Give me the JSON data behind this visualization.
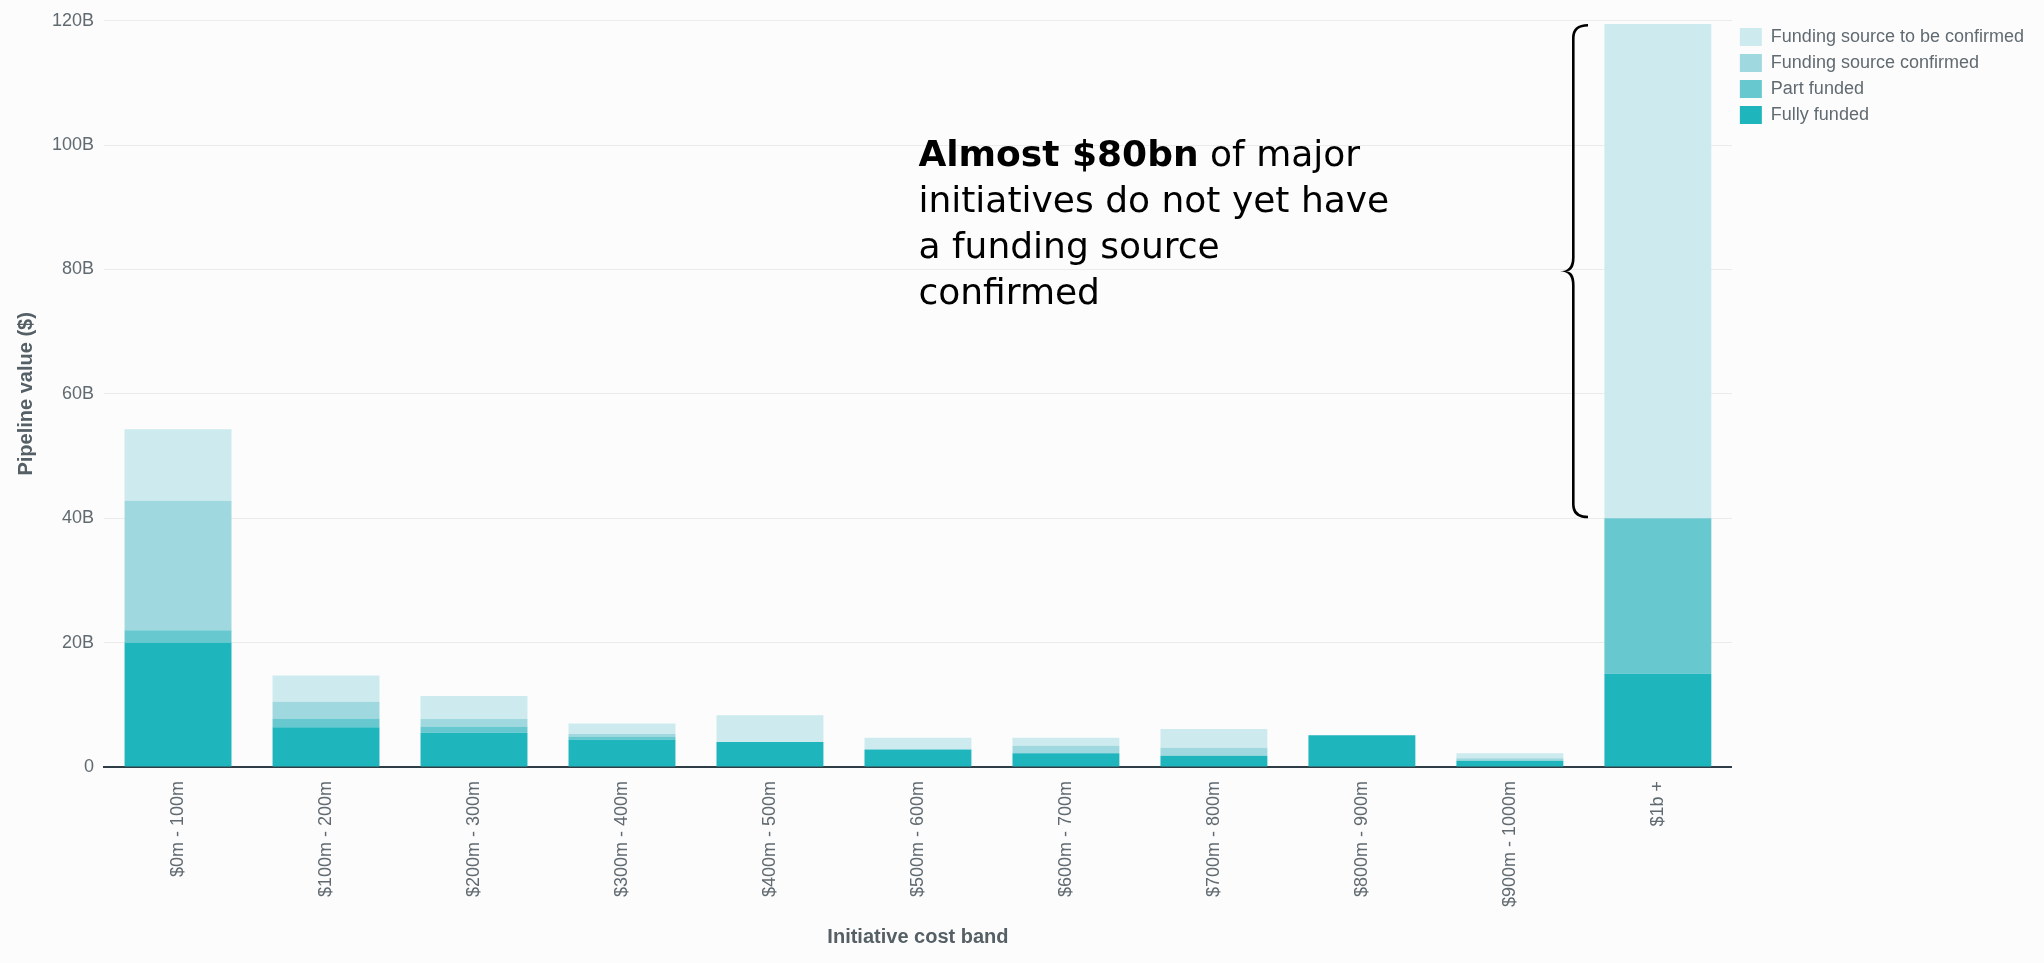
{
  "chart_data": {
    "type": "bar",
    "stacked": true,
    "categories": [
      "$0m - 100m",
      "$100m - 200m",
      "$200m - 300m",
      "$300m - 400m",
      "$400m - 500m",
      "$500m - 600m",
      "$600m - 700m",
      "$700m - 800m",
      "$800m - 900m",
      "$900m - 1000m",
      "$1b +"
    ],
    "series": [
      {
        "name": "Fully funded",
        "color": "#1fb5bd",
        "values": [
          20,
          6.4,
          5.5,
          4.4,
          4.0,
          2.8,
          2.2,
          1.8,
          5.1,
          1.0,
          15
        ]
      },
      {
        "name": "Part funded",
        "color": "#68c8cf",
        "values": [
          2,
          1.4,
          1.0,
          0.5,
          0,
          0,
          0,
          0,
          0,
          0,
          25
        ]
      },
      {
        "name": "Funding source confirmed",
        "color": "#9fd8de",
        "values": [
          20.8,
          2.7,
          1.2,
          0.4,
          0,
          0,
          1.2,
          1.3,
          0,
          0.4,
          0
        ]
      },
      {
        "name": "Funding source to be confirmed",
        "color": "#cdebef",
        "values": [
          11.5,
          4.2,
          3.7,
          1.7,
          4.3,
          1.9,
          1.3,
          3.0,
          0,
          0.8,
          79.5
        ]
      }
    ],
    "ylim": [
      0,
      120
    ],
    "yticks": [
      0,
      {
        "value": 20,
        "label": "20B"
      },
      {
        "value": 40,
        "label": "40B"
      },
      {
        "value": 60,
        "label": "60B"
      },
      {
        "value": 80,
        "label": "80B"
      },
      {
        "value": 100,
        "label": "100B"
      },
      {
        "value": 120,
        "label": "120B"
      }
    ],
    "xlabel": "Initiative cost band",
    "ylabel": "Pipeline value ($)",
    "grid": "y",
    "legend": "top right",
    "annotations": [
      "Almost $80bn",
      "of major initiatives do not yet have a funding source confirmed"
    ]
  }
}
